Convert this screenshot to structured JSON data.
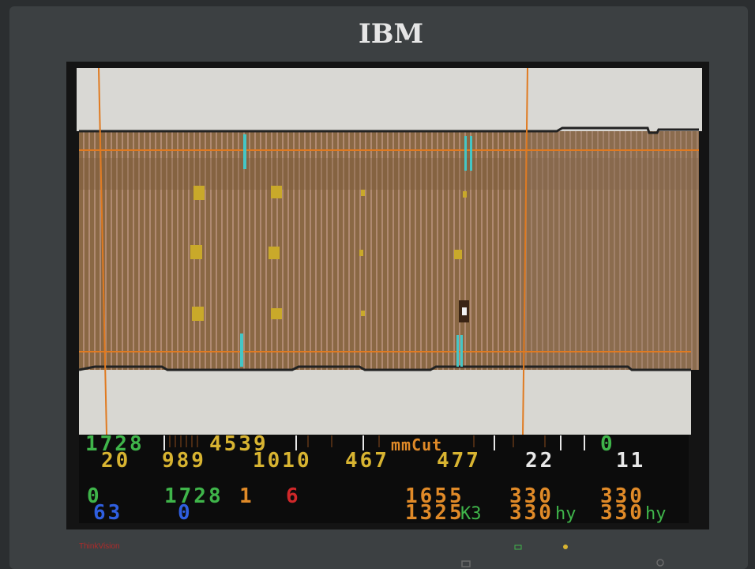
{
  "brand": "IBM",
  "model": "ThinkVision",
  "readout": {
    "row1": [
      "1728",
      "4539",
      "mmCut",
      "0"
    ],
    "row2": [
      "20",
      "989",
      "1010",
      "467",
      "477",
      "22",
      "11"
    ],
    "row3": [
      "0",
      "1728",
      "1",
      "6",
      "1655",
      "330",
      "330"
    ],
    "row4": [
      "63",
      "0",
      "1325",
      "K3",
      "330",
      "hy",
      "330",
      "hy"
    ]
  }
}
